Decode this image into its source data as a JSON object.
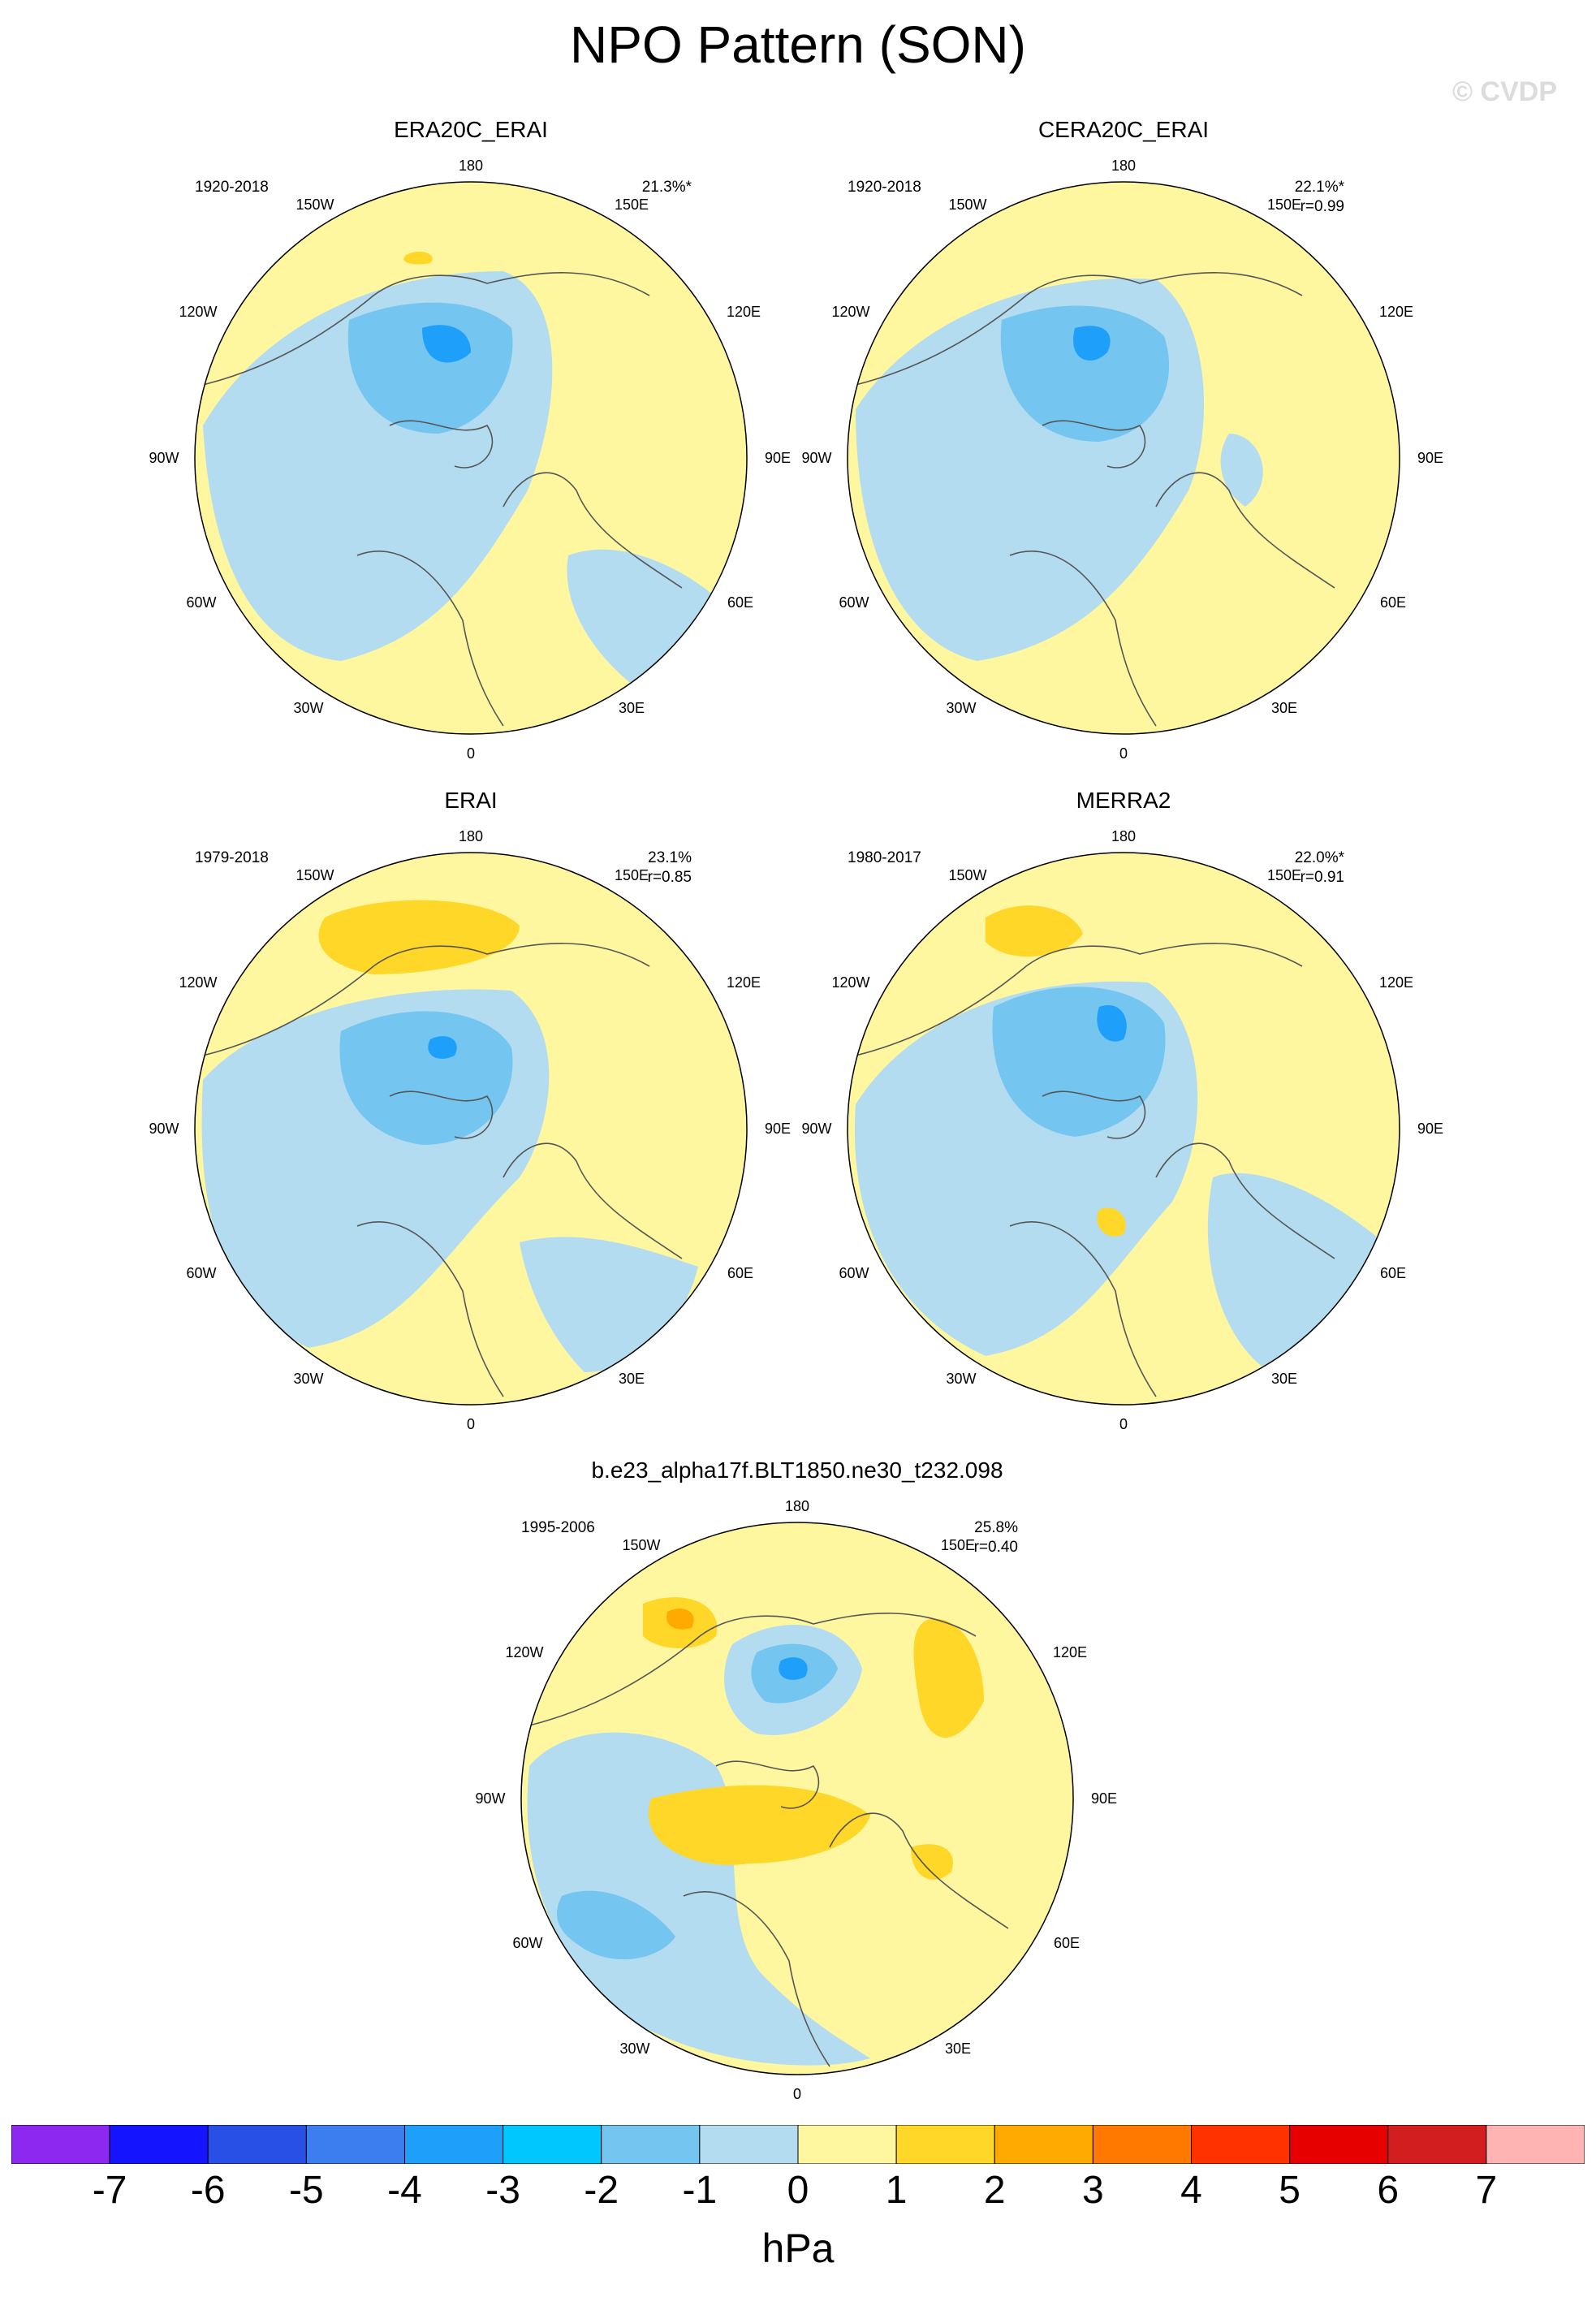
{
  "title": "NPO Pattern (SON)",
  "copyright": "© CVDP",
  "colors": {
    "neg1": "#b3dcf1",
    "neg2": "#74c5f0",
    "neg3": "#1ea0fa",
    "pos1": "#fff7a0",
    "pos2": "#ffd728",
    "pos3": "#ffaa00",
    "coast": "#555555"
  },
  "panels": [
    {
      "title": "ERA20C_ERAI",
      "years": "1920-2018",
      "stat1": "21.3%*",
      "stat2": ""
    },
    {
      "title": "CERA20C_ERAI",
      "years": "1920-2018",
      "stat1": "22.1%*",
      "stat2": "r=0.99"
    },
    {
      "title": "ERAI",
      "years": "1979-2018",
      "stat1": "23.1%",
      "stat2": "r=0.85"
    },
    {
      "title": "MERRA2",
      "years": "1980-2017",
      "stat1": "22.0%*",
      "stat2": "r=0.91"
    },
    {
      "title": "b.e23_alpha17f.BLT1850.ne30_t232.098",
      "years": "1995-2006",
      "stat1": "25.8%",
      "stat2": "r=0.40"
    }
  ],
  "lon_labels": {
    "top": "180",
    "upper_left": "150W",
    "upper_right": "150E",
    "left_high": "120W",
    "right_high": "120E",
    "left": "90W",
    "right": "90E",
    "left_low": "60W",
    "right_low": "60E",
    "lower_left": "30W",
    "lower_right": "30E",
    "bottom": "0"
  },
  "colorbar": {
    "colors": [
      "#8c28f0",
      "#1414ff",
      "#2850e6",
      "#3c7ef0",
      "#1ea0fa",
      "#00c8ff",
      "#74c5f0",
      "#b3dcf1",
      "#fff7a0",
      "#ffd728",
      "#ffaa00",
      "#ff7800",
      "#ff3200",
      "#e60000",
      "#d21e1e",
      "#ffb4b4"
    ],
    "labels": [
      "-7",
      "-6",
      "-5",
      "-4",
      "-3",
      "-2",
      "-1",
      "0",
      "1",
      "2",
      "3",
      "4",
      "5",
      "6",
      "7"
    ],
    "units": "hPa"
  }
}
